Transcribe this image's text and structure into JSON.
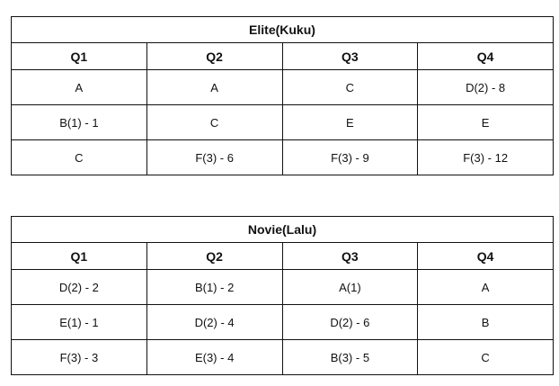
{
  "tables": [
    {
      "title": "Elite(Kuku)",
      "headers": [
        "Q1",
        "Q2",
        "Q3",
        "Q4"
      ],
      "rows": [
        [
          "A",
          "A",
          "C",
          "D(2) - 8"
        ],
        [
          "B(1) - 1",
          "C",
          "E",
          "E"
        ],
        [
          "C",
          "F(3) - 6",
          "F(3) - 9",
          "F(3) - 12"
        ]
      ]
    },
    {
      "title": "Novie(Lalu)",
      "headers": [
        "Q1",
        "Q2",
        "Q3",
        "Q4"
      ],
      "rows": [
        [
          "D(2) - 2",
          "B(1) - 2",
          "A(1)",
          "A"
        ],
        [
          "E(1) - 1",
          "D(2) - 4",
          "D(2) - 6",
          "B"
        ],
        [
          "F(3) - 3",
          "E(3) - 4",
          "B(3) - 5",
          "C"
        ]
      ]
    }
  ]
}
